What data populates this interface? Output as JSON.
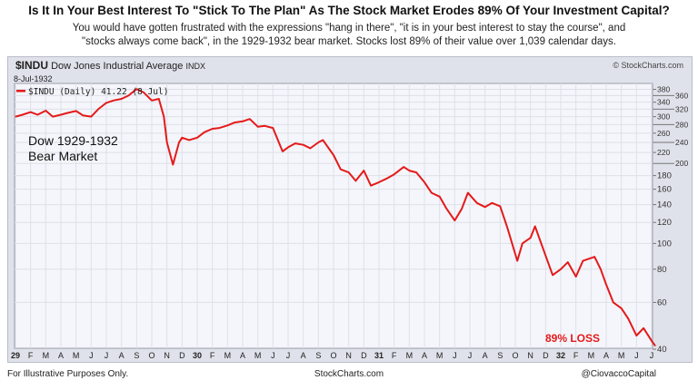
{
  "header": {
    "title": "Is It In Your Best Interest To \"Stick To The Plan\" As The Stock Market Erodes 89% Of Your Investment Capital?",
    "subtitle_line1": "You would have gotten frustrated with the expressions \"hang in there\", \"it is in your best interest to stay the course\", and",
    "subtitle_line2": "\"stocks always come back\", in the 1929-1932 bear market.  Stocks lost 89% of their value over 1,039 calendar days."
  },
  "chart_header": {
    "symbol": "$INDU",
    "name": "Dow Jones Industrial Average",
    "exchange": "INDX",
    "date": "8-Jul-1932",
    "source": "© StockCharts.com"
  },
  "footer": {
    "left": "For Illustrative Purposes Only.",
    "center": "StockCharts.com",
    "right": "@CiovaccoCapital"
  },
  "chart_data": {
    "type": "line",
    "legend": "$INDU (Daily) 41.22 (8 Jul)",
    "legend_placement": "top-left",
    "y_scale": "log",
    "ylim": [
      40,
      380
    ],
    "grid": true,
    "y_ticks": [
      380,
      360,
      340,
      320,
      300,
      280,
      260,
      240,
      220,
      200,
      180,
      160,
      140,
      120,
      100,
      80,
      60,
      40
    ],
    "x_ticks": [
      "29",
      "F",
      "M",
      "A",
      "M",
      "J",
      "J",
      "A",
      "S",
      "O",
      "N",
      "D",
      "30",
      "F",
      "M",
      "A",
      "M",
      "J",
      "J",
      "A",
      "S",
      "O",
      "N",
      "D",
      "31",
      "F",
      "M",
      "A",
      "M",
      "J",
      "J",
      "A",
      "S",
      "O",
      "N",
      "D",
      "32",
      "F",
      "M",
      "A",
      "M",
      "J",
      "J"
    ],
    "annotations": [
      "Dow 1929-1932\nBear Market",
      "89% LOSS"
    ],
    "line_color": "#e41a1a",
    "series": [
      {
        "points": [
          [
            "1929-01-01",
            300
          ],
          [
            "1929-01-15",
            305
          ],
          [
            "1929-02-01",
            312
          ],
          [
            "1929-02-15",
            305
          ],
          [
            "1929-03-01",
            316
          ],
          [
            "1929-03-15",
            300
          ],
          [
            "1929-04-01",
            305
          ],
          [
            "1929-04-15",
            310
          ],
          [
            "1929-05-01",
            315
          ],
          [
            "1929-05-15",
            303
          ],
          [
            "1929-06-01",
            300
          ],
          [
            "1929-06-15",
            320
          ],
          [
            "1929-07-01",
            338
          ],
          [
            "1929-07-15",
            345
          ],
          [
            "1929-08-01",
            350
          ],
          [
            "1929-08-15",
            360
          ],
          [
            "1929-09-01",
            381
          ],
          [
            "1929-09-15",
            370
          ],
          [
            "1929-10-01",
            345
          ],
          [
            "1929-10-15",
            350
          ],
          [
            "1929-10-25",
            300
          ],
          [
            "1929-11-01",
            240
          ],
          [
            "1929-11-13",
            198
          ],
          [
            "1929-11-25",
            240
          ],
          [
            "1929-12-01",
            250
          ],
          [
            "1929-12-15",
            245
          ],
          [
            "1930-01-01",
            250
          ],
          [
            "1930-01-15",
            262
          ],
          [
            "1930-02-01",
            270
          ],
          [
            "1930-02-15",
            272
          ],
          [
            "1930-03-01",
            278
          ],
          [
            "1930-03-15",
            285
          ],
          [
            "1930-04-01",
            288
          ],
          [
            "1930-04-15",
            294
          ],
          [
            "1930-05-01",
            275
          ],
          [
            "1930-05-15",
            277
          ],
          [
            "1930-06-01",
            272
          ],
          [
            "1930-06-20",
            222
          ],
          [
            "1930-07-01",
            230
          ],
          [
            "1930-07-15",
            238
          ],
          [
            "1930-08-01",
            235
          ],
          [
            "1930-08-15",
            228
          ],
          [
            "1930-09-01",
            240
          ],
          [
            "1930-09-10",
            245
          ],
          [
            "1930-10-01",
            215
          ],
          [
            "1930-10-15",
            190
          ],
          [
            "1930-11-01",
            185
          ],
          [
            "1930-11-15",
            172
          ],
          [
            "1930-12-01",
            188
          ],
          [
            "1930-12-15",
            165
          ],
          [
            "1931-01-01",
            170
          ],
          [
            "1931-01-15",
            175
          ],
          [
            "1931-02-01",
            182
          ],
          [
            "1931-02-20",
            194
          ],
          [
            "1931-03-01",
            188
          ],
          [
            "1931-03-15",
            185
          ],
          [
            "1931-04-01",
            170
          ],
          [
            "1931-04-15",
            155
          ],
          [
            "1931-05-01",
            150
          ],
          [
            "1931-05-15",
            135
          ],
          [
            "1931-06-01",
            122
          ],
          [
            "1931-06-15",
            135
          ],
          [
            "1931-06-27",
            155
          ],
          [
            "1931-07-15",
            142
          ],
          [
            "1931-08-01",
            137
          ],
          [
            "1931-08-15",
            142
          ],
          [
            "1931-09-01",
            138
          ],
          [
            "1931-09-15",
            115
          ],
          [
            "1931-10-05",
            86
          ],
          [
            "1931-10-15",
            100
          ],
          [
            "1931-11-01",
            105
          ],
          [
            "1931-11-10",
            116
          ],
          [
            "1931-12-01",
            90
          ],
          [
            "1931-12-15",
            76
          ],
          [
            "1932-01-01",
            80
          ],
          [
            "1932-01-15",
            85
          ],
          [
            "1932-02-01",
            75
          ],
          [
            "1932-02-15",
            86
          ],
          [
            "1932-03-08",
            89
          ],
          [
            "1932-03-20",
            80
          ],
          [
            "1932-04-01",
            70
          ],
          [
            "1932-04-15",
            60
          ],
          [
            "1932-05-01",
            57
          ],
          [
            "1932-05-15",
            52
          ],
          [
            "1932-06-01",
            45
          ],
          [
            "1932-06-15",
            48
          ],
          [
            "1932-07-01",
            43
          ],
          [
            "1932-07-08",
            41.22
          ]
        ]
      }
    ]
  }
}
